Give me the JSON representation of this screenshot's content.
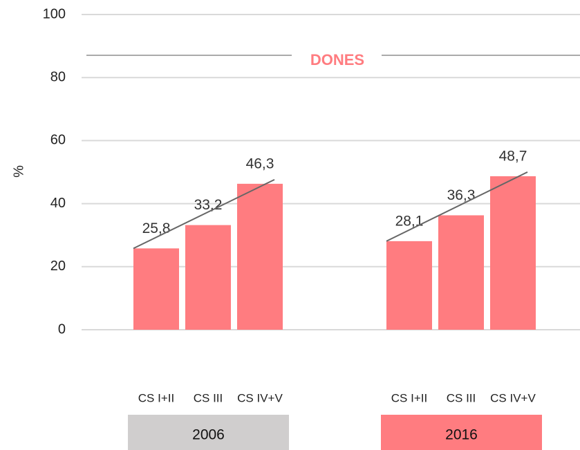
{
  "chart_data": {
    "type": "bar",
    "title": "DONES",
    "y_label": "%",
    "categories": [
      "CS I+II",
      "CS III",
      "CS IV+V"
    ],
    "series": [
      {
        "name": "2006",
        "color": "#ff7c80",
        "box_color": "#d0cece",
        "values": [
          25.8,
          33.2,
          46.3
        ],
        "value_labels": [
          "25,8",
          "33,2",
          "46,3"
        ]
      },
      {
        "name": "2016",
        "color": "#ff7c80",
        "box_color": "#ff7c80",
        "values": [
          28.1,
          36.3,
          48.7
        ],
        "value_labels": [
          "28,1",
          "36,3",
          "48,7"
        ]
      }
    ],
    "ylim": [
      0,
      100
    ],
    "yticks": [
      0,
      20,
      40,
      60,
      80,
      100
    ],
    "grid": true
  }
}
